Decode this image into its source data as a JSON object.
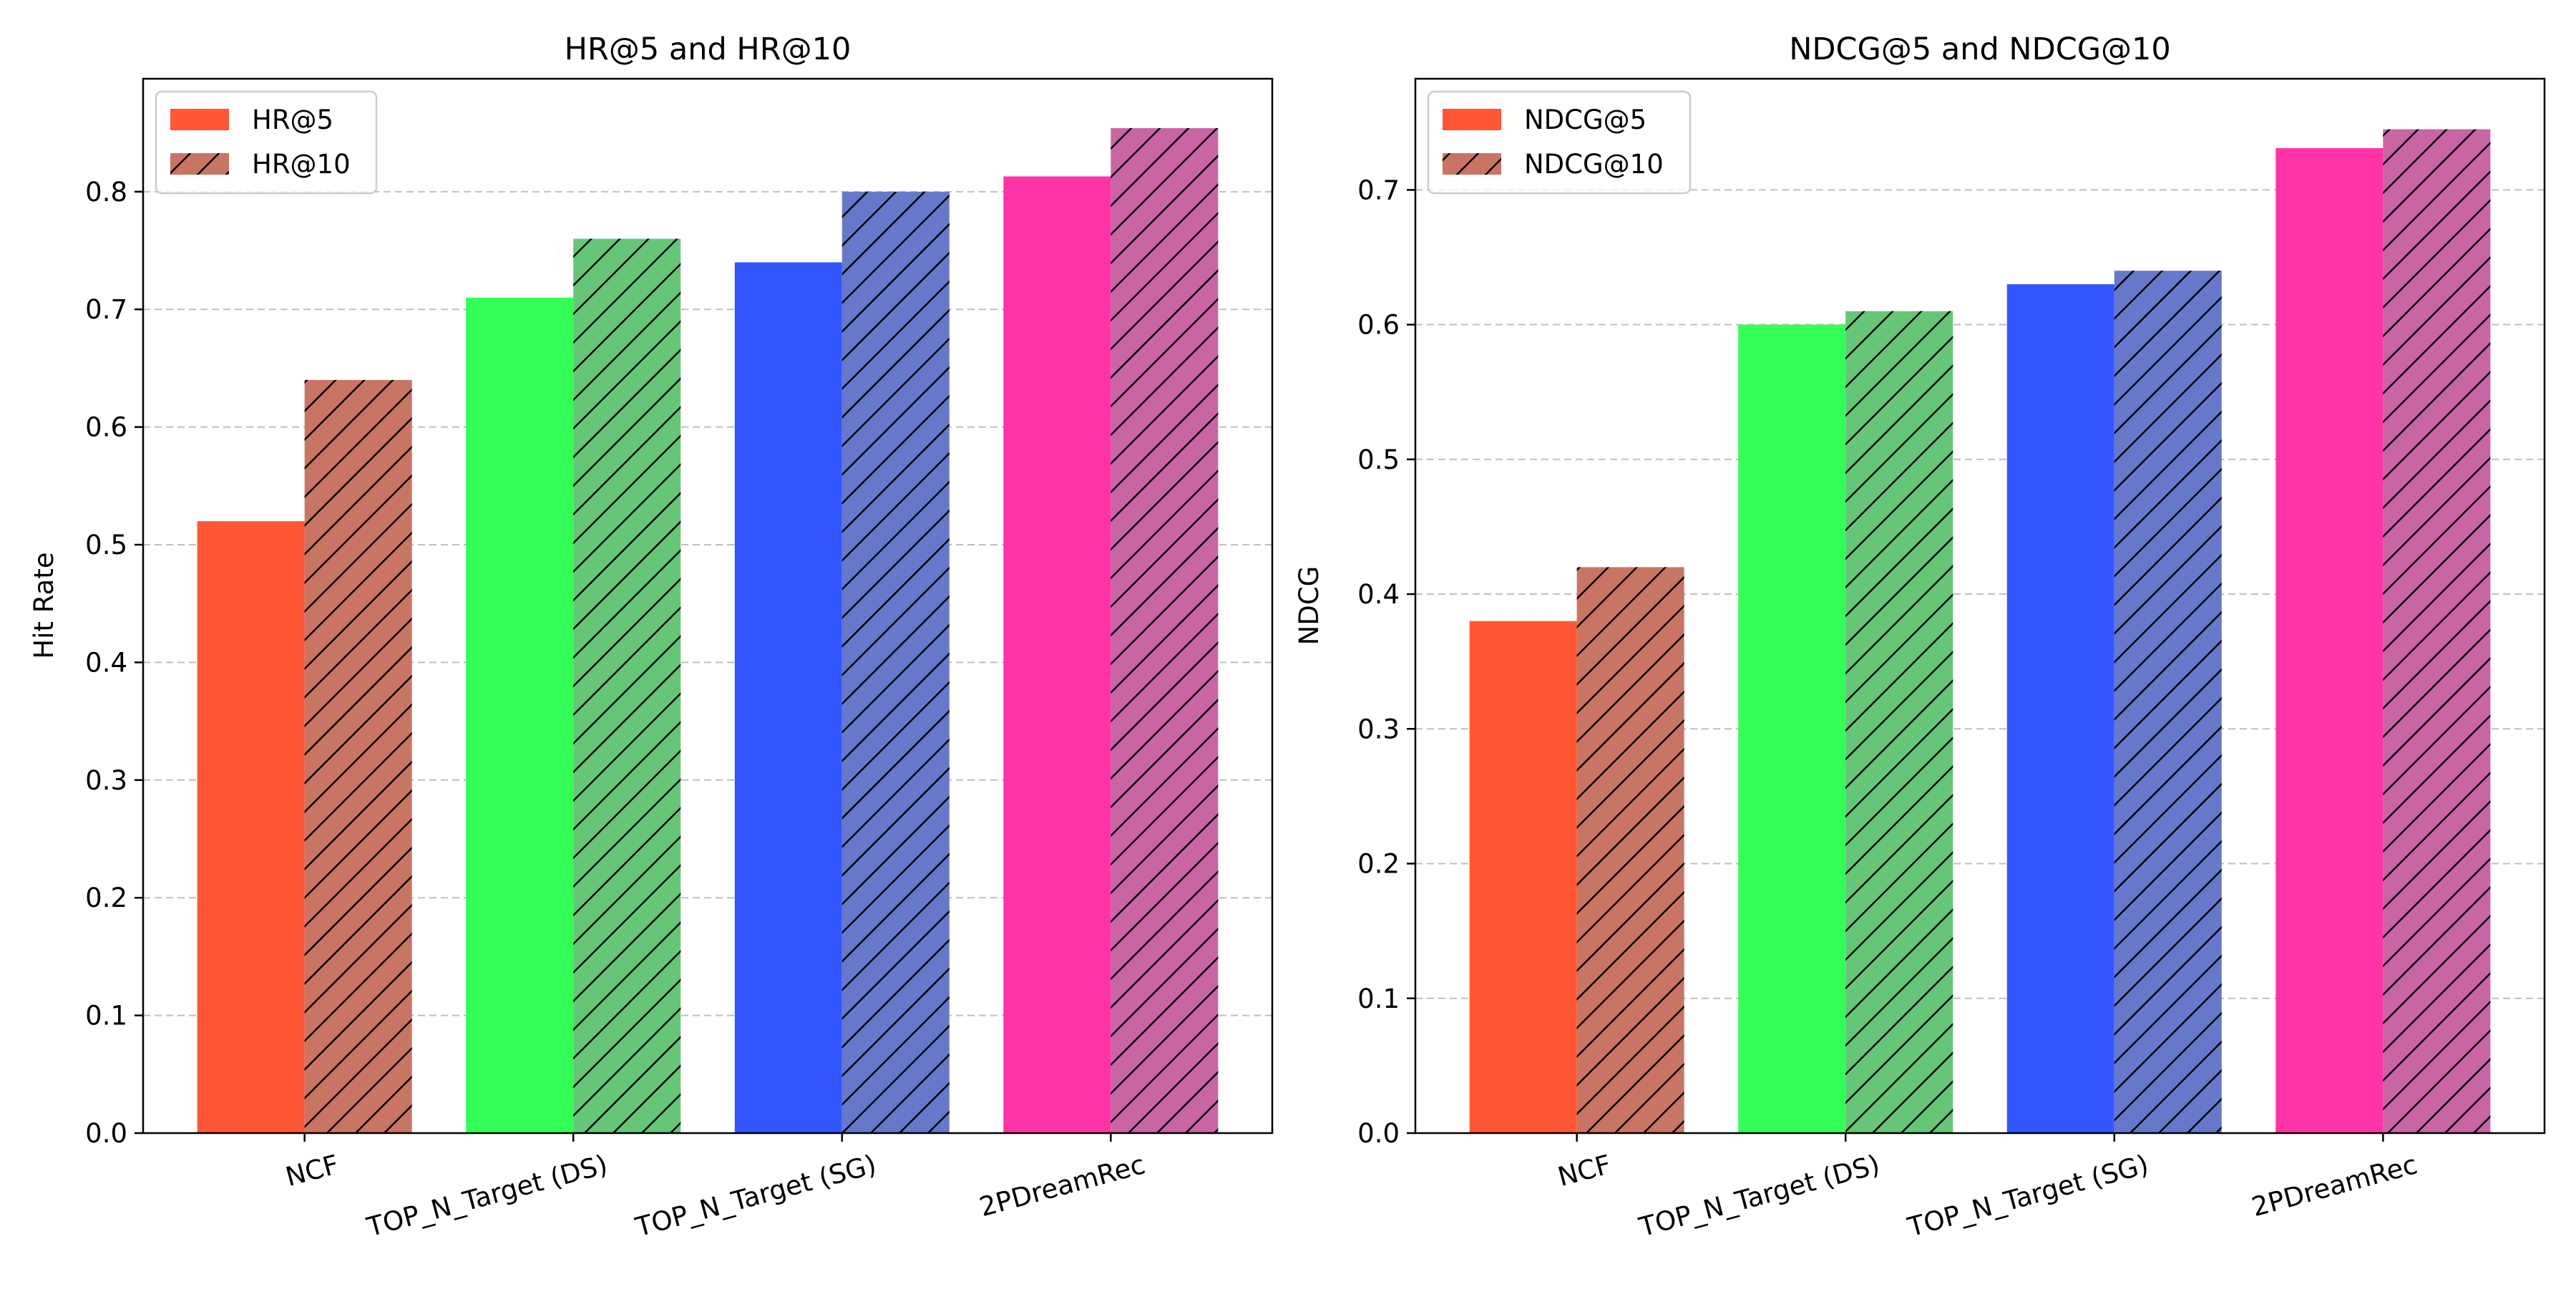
{
  "chart_data": [
    {
      "type": "bar",
      "title": "HR@5 and HR@10",
      "xlabel": "",
      "ylabel": "Hit Rate",
      "categories": [
        "NCF",
        "TOP_N_Target (DS)",
        "TOP_N_Target (SG)",
        "2PDreamRec"
      ],
      "series": [
        {
          "name": "HR@5",
          "values": [
            0.52,
            0.71,
            0.74,
            0.813
          ],
          "hatch": false
        },
        {
          "name": "HR@10",
          "values": [
            0.64,
            0.76,
            0.8,
            0.854
          ],
          "hatch": true
        }
      ],
      "ylim": [
        0,
        0.896
      ],
      "yticks": [
        "0.0",
        "0.1",
        "0.2",
        "0.3",
        "0.4",
        "0.5",
        "0.6",
        "0.7",
        "0.8"
      ],
      "grid": "y-dashed",
      "legend": "top-left"
    },
    {
      "type": "bar",
      "title": "NDCG@5 and NDCG@10",
      "xlabel": "",
      "ylabel": "NDCG",
      "categories": [
        "NCF",
        "TOP_N_Target (DS)",
        "TOP_N_Target (SG)",
        "2PDreamRec"
      ],
      "series": [
        {
          "name": "NDCG@5",
          "values": [
            0.38,
            0.6,
            0.63,
            0.731
          ],
          "hatch": false
        },
        {
          "name": "NDCG@10",
          "values": [
            0.42,
            0.61,
            0.64,
            0.745
          ],
          "hatch": true
        }
      ],
      "ylim": [
        0,
        0.7825
      ],
      "yticks": [
        "0.0",
        "0.1",
        "0.2",
        "0.3",
        "0.4",
        "0.5",
        "0.6",
        "0.7"
      ],
      "grid": "y-dashed",
      "legend": "top-left"
    }
  ],
  "colors": {
    "base": [
      "#ff5733",
      "#33ff57",
      "#3357ff",
      "#ff33a6"
    ],
    "hatched": [
      "#c97563",
      "#66c678",
      "#6678c9",
      "#c965a4"
    ],
    "legend_solid": "#ff5733",
    "legend_hatched": "#c97563",
    "grid": "#bfbfbf",
    "axis": "#000000"
  }
}
